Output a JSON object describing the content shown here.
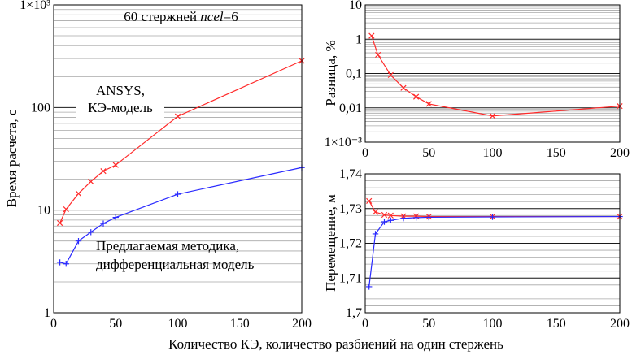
{
  "colors": {
    "red": "#ff2a2a",
    "blue": "#2a2aff",
    "major_grid": "#1a1a1a",
    "minor_grid": "#a8a8a8"
  },
  "shared_xlabel": "Количество КЭ, количество разбиений на один стержень",
  "chart_data": [
    {
      "id": "time",
      "type": "line",
      "yscale": "log",
      "xlim": [
        0,
        200
      ],
      "ylim": [
        1,
        1000
      ],
      "xticks": [
        0,
        50,
        100,
        150,
        200
      ],
      "xtick_labels": [
        "0",
        "50",
        "100",
        "150",
        "200"
      ],
      "yticks": [
        1,
        10,
        100,
        1000
      ],
      "ytick_labels": [
        "1",
        "10",
        "100",
        "1×10³"
      ],
      "ylabel": "Время расчета, с",
      "xlabel": "",
      "title": "60 стержней  ncel=6",
      "title_parts": {
        "prefix": "60 стержней",
        "italic": "ncel",
        "suffix": "=6"
      },
      "grid": true,
      "series": [
        {
          "name": "ANSYS, КЭ-модель",
          "color": "#ff2a2a",
          "marker": "x",
          "x": [
            5,
            10,
            20,
            30,
            40,
            50,
            100,
            200
          ],
          "values": [
            7.5,
            10.2,
            14.5,
            19,
            24,
            27.5,
            82,
            285
          ]
        },
        {
          "name": "Предлагаемая методика, дифференциальная модель",
          "color": "#2a2aff",
          "marker": "+",
          "x": [
            5,
            10,
            20,
            30,
            40,
            50,
            100,
            200
          ],
          "values": [
            3.1,
            3.0,
            5.0,
            6.1,
            7.4,
            8.5,
            14.3,
            26
          ]
        }
      ],
      "annotations": [
        {
          "lines": [
            "ANSYS,",
            "КЭ-модель"
          ]
        },
        {
          "lines": [
            "Предлагаемая методика,",
            "дифференциальная модель"
          ]
        }
      ]
    },
    {
      "id": "diff",
      "type": "line",
      "yscale": "log",
      "xlim": [
        0,
        200
      ],
      "ylim": [
        0.001,
        10
      ],
      "xticks": [
        0,
        50,
        100,
        150,
        200
      ],
      "xtick_labels": [
        "0",
        "50",
        "100",
        "150",
        "200"
      ],
      "yticks": [
        0.001,
        0.01,
        0.1,
        1,
        10
      ],
      "ytick_labels": [
        "1×10⁻³",
        "0,01",
        "0,1",
        "1",
        "10"
      ],
      "ylabel": "Разница, %",
      "xlabel": "",
      "grid": true,
      "series": [
        {
          "color": "#ff2a2a",
          "marker": "x",
          "x": [
            5,
            10,
            20,
            30,
            40,
            50,
            100,
            200
          ],
          "values": [
            1.25,
            0.35,
            0.09,
            0.038,
            0.021,
            0.013,
            0.0058,
            0.0112
          ]
        }
      ]
    },
    {
      "id": "disp",
      "type": "line",
      "yscale": "linear",
      "xlim": [
        0,
        200
      ],
      "ylim": [
        1.7,
        1.74
      ],
      "xticks": [
        0,
        50,
        100,
        150,
        200
      ],
      "xtick_labels": [
        "0",
        "50",
        "100",
        "150",
        "200"
      ],
      "yticks": [
        1.7,
        1.71,
        1.72,
        1.73,
        1.74
      ],
      "ytick_labels": [
        "1,7",
        "1,71",
        "1,72",
        "1,73",
        "1,74"
      ],
      "ylabel": "Перемещение, м",
      "xlabel": "",
      "grid": true,
      "series": [
        {
          "color": "#ff2a2a",
          "marker": "x",
          "x": [
            3,
            8,
            15,
            20,
            30,
            40,
            50,
            100,
            200
          ],
          "values": [
            1.7322,
            1.729,
            1.7282,
            1.728,
            1.7278,
            1.7278,
            1.7277,
            1.7277,
            1.7277
          ]
        },
        {
          "color": "#2a2aff",
          "marker": "+",
          "x": [
            3,
            8,
            15,
            20,
            30,
            40,
            50,
            100,
            200
          ],
          "values": [
            1.7075,
            1.7227,
            1.7262,
            1.7266,
            1.7272,
            1.7274,
            1.7275,
            1.7276,
            1.7277
          ]
        }
      ]
    }
  ]
}
